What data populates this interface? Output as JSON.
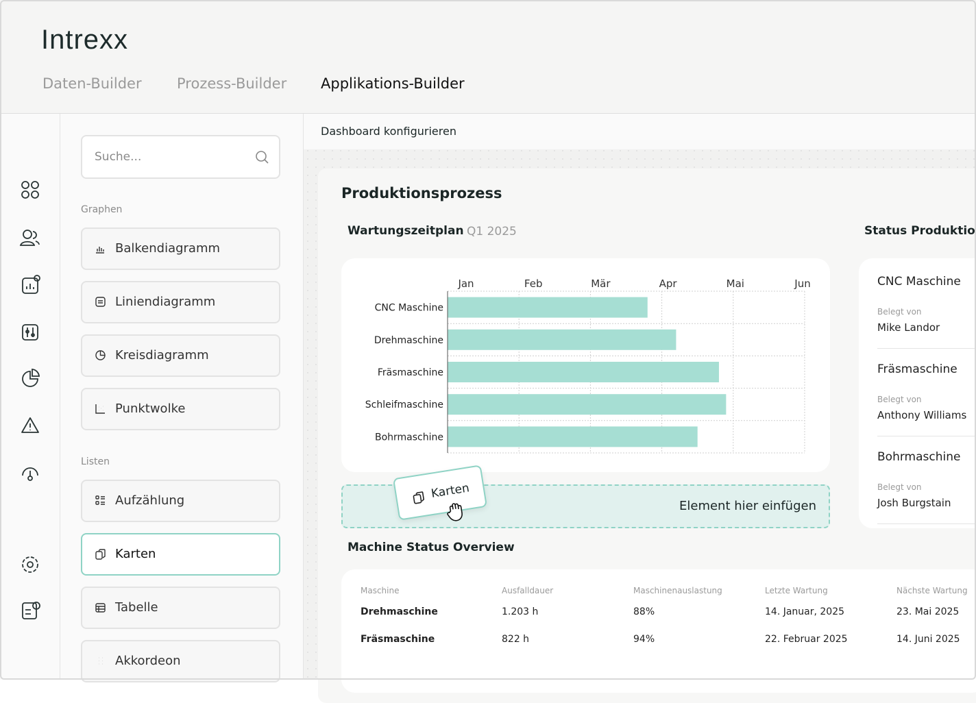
{
  "header": {
    "logo": "Intrexx",
    "tabs": [
      "Daten-Builder",
      "Prozess-Builder",
      "Applikations-Builder"
    ]
  },
  "sidebar": {
    "search_placeholder": "Suche...",
    "groups": [
      {
        "title": "Graphen",
        "items": [
          "Balkendiagramm",
          "Liniendiagramm",
          "Kreisdiagramm",
          "Punktwolke"
        ]
      },
      {
        "title": "Listen",
        "items": [
          "Aufzählung",
          "Karten",
          "Tabelle",
          "Akkordeon"
        ]
      }
    ]
  },
  "dashboard": {
    "toolbar_title": "Dashboard konfigurieren",
    "title": "Produktionsprozess",
    "schedule_title": "Wartungszeitplan",
    "schedule_period": "Q1 2025",
    "drop_zone": "Element hier einfügen",
    "drag_item": "Karten",
    "status": {
      "title": "Status Produktion",
      "items": [
        {
          "name": "CNC Maschine",
          "label": "Belegt von",
          "person": "Mike Landor"
        },
        {
          "name": "Fräsmaschine",
          "label": "Belegt von",
          "person": "Anthony Williams"
        },
        {
          "name": "Bohrmaschine",
          "label": "Belegt von",
          "person": "Josh Burgstain"
        }
      ]
    },
    "table": {
      "title": "Machine Status Overview",
      "columns": [
        "Maschine",
        "Ausfalldauer",
        "Maschinenauslastung",
        "Letzte Wartung",
        "Nächste Wartung"
      ],
      "rows": [
        [
          "Drehmaschine",
          "1.203 h",
          "88%",
          "14. Januar, 2025",
          "23. Mai 2025"
        ],
        [
          "Fräsmaschine",
          "822 h",
          "94%",
          "22. Februar 2025",
          "14. Juni 2025"
        ]
      ]
    }
  },
  "chart_data": {
    "type": "bar",
    "orientation": "horizontal",
    "color": "#a6ded3",
    "grid": true,
    "categories": [
      "CNC Maschine",
      "Drehmaschine",
      "Fräsmaschine",
      "Schleifmaschine",
      "Bohrmaschine"
    ],
    "values": [
      2.8,
      3.2,
      3.8,
      3.9,
      3.5
    ],
    "xlim": [
      0,
      5
    ],
    "xticks": [
      {
        "value": 0,
        "label": "Jan"
      },
      {
        "value": 1,
        "label": "Feb"
      },
      {
        "value": 2,
        "label": "Mär"
      },
      {
        "value": 3,
        "label": "Apr"
      },
      {
        "value": 4,
        "label": "Mai"
      },
      {
        "value": 5,
        "label": "Jun"
      }
    ]
  }
}
